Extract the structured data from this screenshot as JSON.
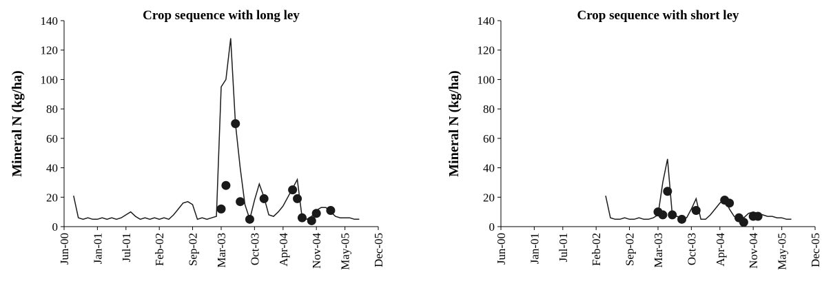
{
  "chart_data": [
    {
      "type": "line",
      "title": "Crop sequence with long ley",
      "ylabel": "Mineral N (kg/ha)",
      "xlim": [
        "2000-06",
        "2005-12"
      ],
      "xticks": [
        {
          "value": "2000-06",
          "label": "Jun-00"
        },
        {
          "value": "2001-01",
          "label": "Jan-01"
        },
        {
          "value": "2001-07",
          "label": "Jul-01"
        },
        {
          "value": "2002-02",
          "label": "Feb-02"
        },
        {
          "value": "2002-09",
          "label": "Sep-02"
        },
        {
          "value": "2003-03",
          "label": "Mar-03"
        },
        {
          "value": "2003-10",
          "label": "Oct-03"
        },
        {
          "value": "2004-04",
          "label": "Apr-04"
        },
        {
          "value": "2004-11",
          "label": "Nov-04"
        },
        {
          "value": "2005-05",
          "label": "May-05"
        },
        {
          "value": "2005-12",
          "label": "Dec-05"
        }
      ],
      "ylim": [
        0,
        140
      ],
      "yticks": [
        0,
        20,
        40,
        60,
        80,
        100,
        120,
        140
      ],
      "series": [
        {
          "style": "line",
          "color": "#1a1a1a",
          "x": [
            "2000-08",
            "2000-09",
            "2000-10",
            "2000-11",
            "2000-12",
            "2001-01",
            "2001-02",
            "2001-03",
            "2001-04",
            "2001-05",
            "2001-06",
            "2001-07",
            "2001-08",
            "2001-09",
            "2001-10",
            "2001-11",
            "2001-12",
            "2002-01",
            "2002-02",
            "2002-03",
            "2002-04",
            "2002-05",
            "2002-06",
            "2002-07",
            "2002-08",
            "2002-09",
            "2002-10",
            "2002-11",
            "2002-12",
            "2003-01",
            "2003-02",
            "2003-03",
            "2003-04",
            "2003-05",
            "2003-06",
            "2003-07",
            "2003-08",
            "2003-09",
            "2003-10",
            "2003-11",
            "2003-12",
            "2004-01",
            "2004-02",
            "2004-03",
            "2004-04",
            "2004-05",
            "2004-06",
            "2004-07",
            "2004-08",
            "2004-09",
            "2004-10",
            "2004-11",
            "2004-12",
            "2005-01",
            "2005-02",
            "2005-03",
            "2005-04",
            "2005-05",
            "2005-06",
            "2005-07",
            "2005-08"
          ],
          "values": [
            21,
            6,
            5,
            6,
            5,
            5,
            6,
            5,
            6,
            5,
            6,
            8,
            10,
            7,
            5,
            6,
            5,
            6,
            5,
            6,
            5,
            8,
            12,
            16,
            17,
            15,
            5,
            6,
            5,
            6,
            7,
            95,
            100,
            128,
            70,
            40,
            15,
            5,
            18,
            29,
            20,
            8,
            7,
            10,
            14,
            20,
            26,
            32,
            6,
            5,
            7,
            11,
            13,
            13,
            10,
            7,
            6,
            6,
            6,
            5,
            5
          ]
        },
        {
          "style": "points",
          "color": "#1a1a1a",
          "x": [
            "2003-03",
            "2003-04",
            "2003-06",
            "2003-07",
            "2003-09",
            "2003-12",
            "2004-06",
            "2004-07",
            "2004-08",
            "2004-10",
            "2004-11",
            "2005-02"
          ],
          "values": [
            12,
            28,
            70,
            17,
            5,
            19,
            25,
            19,
            6,
            4,
            9,
            11
          ]
        }
      ]
    },
    {
      "type": "line",
      "title": "Crop sequence with short ley",
      "ylabel": "Mineral N (kg/ha)",
      "xlim": [
        "2000-06",
        "2005-12"
      ],
      "xticks": [
        {
          "value": "2000-06",
          "label": "Jun-00"
        },
        {
          "value": "2001-01",
          "label": "Jan-01"
        },
        {
          "value": "2001-07",
          "label": "Jul-01"
        },
        {
          "value": "2002-02",
          "label": "Feb-02"
        },
        {
          "value": "2002-09",
          "label": "Sep-02"
        },
        {
          "value": "2003-03",
          "label": "Mar-03"
        },
        {
          "value": "2003-10",
          "label": "Oct-03"
        },
        {
          "value": "2004-04",
          "label": "Apr-04"
        },
        {
          "value": "2004-11",
          "label": "Nov-04"
        },
        {
          "value": "2005-05",
          "label": "May-05"
        },
        {
          "value": "2005-12",
          "label": "Dec-05"
        }
      ],
      "ylim": [
        0,
        140
      ],
      "yticks": [
        0,
        20,
        40,
        60,
        80,
        100,
        120,
        140
      ],
      "series": [
        {
          "style": "line",
          "color": "#1a1a1a",
          "x": [
            "2002-04",
            "2002-05",
            "2002-06",
            "2002-07",
            "2002-08",
            "2002-09",
            "2002-10",
            "2002-11",
            "2002-12",
            "2003-01",
            "2003-02",
            "2003-03",
            "2003-04",
            "2003-05",
            "2003-06",
            "2003-07",
            "2003-08",
            "2003-09",
            "2003-10",
            "2003-11",
            "2003-12",
            "2004-01",
            "2004-02",
            "2004-03",
            "2004-04",
            "2004-05",
            "2004-06",
            "2004-07",
            "2004-08",
            "2004-09",
            "2004-10",
            "2004-11",
            "2004-12",
            "2005-01",
            "2005-02",
            "2005-03",
            "2005-04",
            "2005-05",
            "2005-06",
            "2005-07"
          ],
          "values": [
            21,
            6,
            5,
            5,
            6,
            5,
            5,
            6,
            5,
            5,
            6,
            8,
            30,
            46,
            8,
            7,
            6,
            6,
            12,
            19,
            5,
            5,
            8,
            12,
            16,
            19,
            12,
            7,
            5,
            6,
            9,
            10,
            9,
            8,
            7,
            7,
            6,
            6,
            5,
            5
          ]
        },
        {
          "style": "points",
          "color": "#1a1a1a",
          "x": [
            "2003-03",
            "2003-04",
            "2003-05",
            "2003-06",
            "2003-08",
            "2003-11",
            "2004-05",
            "2004-06",
            "2004-08",
            "2004-09",
            "2004-11",
            "2004-12"
          ],
          "values": [
            10,
            8,
            24,
            8,
            5,
            11,
            18,
            16,
            6,
            3,
            7,
            7
          ]
        }
      ]
    }
  ]
}
